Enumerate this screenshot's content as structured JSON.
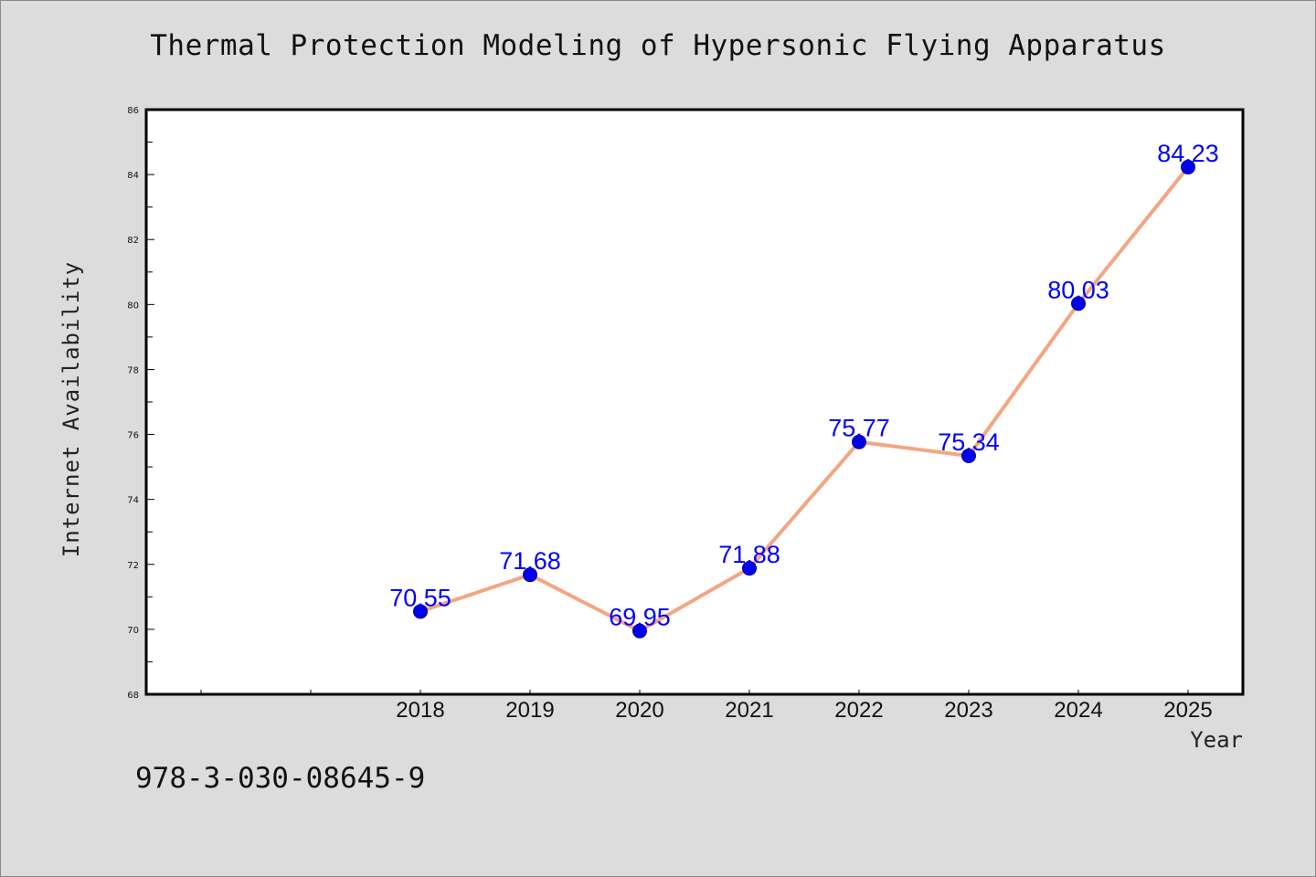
{
  "chart_data": {
    "type": "line",
    "title": "Thermal Protection Modeling of Hypersonic Flying Apparatus",
    "xlabel": "Year",
    "ylabel": "Internet Availability",
    "categories": [
      "2018",
      "2019",
      "2020",
      "2021",
      "2022",
      "2023",
      "2024",
      "2025"
    ],
    "series": [
      {
        "values": [
          70.55,
          71.68,
          69.95,
          71.88,
          75.77,
          75.34,
          80.03,
          84.23
        ],
        "data_labels": [
          "70.55",
          "71.68",
          "69.95",
          "71.88",
          "75.77",
          "75.34",
          "80.03",
          "84.23"
        ]
      }
    ],
    "ylim": [
      68,
      86
    ],
    "yticks": [
      "68",
      "70",
      "72",
      "74",
      "76",
      "78",
      "80",
      "82",
      "84",
      "86"
    ],
    "grid": false,
    "legend": "none",
    "colors": {
      "line": "#f4a582",
      "marker": "#0000ee",
      "data_label": "#0000ff",
      "background": "#dcdcdc",
      "plot_area": "#ffffff"
    }
  },
  "footnote": "978-3-030-08645-9"
}
